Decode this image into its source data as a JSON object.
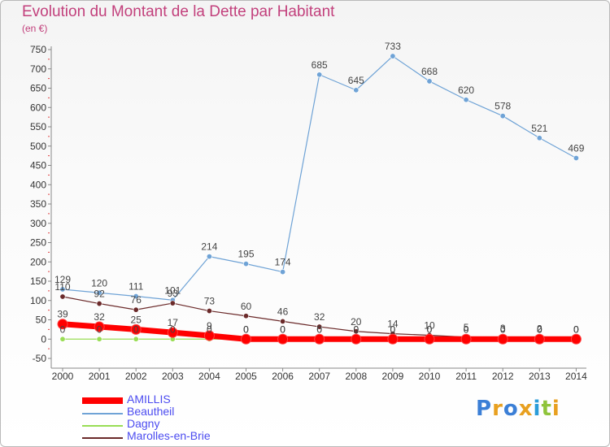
{
  "title": "Evolution du Montant de la Dette par Habitant",
  "unit_label": "(en €)",
  "logo_text": "Proxiti",
  "chart_data": {
    "type": "line",
    "x": [
      "2000",
      "2001",
      "2002",
      "2003",
      "2004",
      "2005",
      "2006",
      "2007",
      "2008",
      "2009",
      "2010",
      "2011",
      "2012",
      "2013",
      "2014"
    ],
    "ylim": [
      -50,
      750
    ],
    "yticks": [
      -50,
      0,
      50,
      100,
      150,
      200,
      250,
      300,
      350,
      400,
      450,
      500,
      550,
      600,
      650,
      700,
      750
    ],
    "grid": false,
    "legend_position": "bottom-left",
    "series": [
      {
        "name": "AMILLIS",
        "color": "#ff0000",
        "values": [
          39,
          32,
          25,
          17,
          9,
          0,
          0,
          0,
          0,
          0,
          0,
          0,
          0,
          0,
          0
        ],
        "labels": [
          "39",
          "32",
          "25",
          "17",
          "9",
          "0",
          "0",
          "0",
          "0",
          "0",
          "0",
          "0",
          "0",
          "0",
          "0"
        ]
      },
      {
        "name": "Beautheil",
        "color": "#6fa3d6",
        "values": [
          129,
          120,
          111,
          101,
          214,
          195,
          174,
          685,
          645,
          733,
          668,
          620,
          578,
          521,
          469
        ],
        "labels": [
          "129",
          "120",
          "111",
          "101",
          "214",
          "195",
          "174",
          "685",
          "645",
          "733",
          "668",
          "620",
          "578",
          "521",
          "469"
        ]
      },
      {
        "name": "Dagny",
        "color": "#99dd55",
        "values": [
          0,
          0,
          0,
          0,
          0,
          0,
          0,
          0,
          0,
          0,
          0,
          0,
          0,
          0,
          0
        ],
        "labels": [
          "0",
          "0",
          "0",
          "0",
          "0",
          "0",
          "0",
          "0",
          "0",
          "0",
          "0",
          "0",
          "0",
          "0",
          "0"
        ]
      },
      {
        "name": "Marolles-en-Brie",
        "color": "#6b2a2a",
        "values": [
          110,
          92,
          76,
          93,
          73,
          60,
          46,
          32,
          20,
          14,
          10,
          5,
          3,
          2,
          0
        ],
        "labels": [
          "110",
          "92",
          "76",
          "93",
          "73",
          "60",
          "46",
          "32",
          "20",
          "14",
          "10",
          "5",
          "3",
          "2",
          "0"
        ]
      }
    ]
  }
}
